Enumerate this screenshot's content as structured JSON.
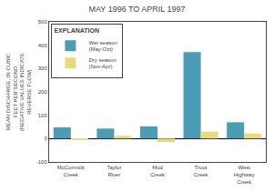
{
  "chart_data": {
    "type": "bar",
    "title": "MAY 1996 TO APRIL 1997",
    "ylabel": "MEAN DISCHARGE, IN CUBIC\nFEET PER SECOND\n(NEGATIVE VALUES INDICATE\nREVERSE FLOW)",
    "categories": [
      "McCormick\nCreek",
      "Taylor\nRiver",
      "Mud\nCreek",
      "Trout\nCreek",
      "West\nHighway\nCreek"
    ],
    "series": [
      {
        "name": "Wet season\n(May-Oct)",
        "color": "#4A9DB5",
        "values": [
          48,
          43,
          52,
          370,
          70
        ]
      },
      {
        "name": "Dry season\n(Nov-Apr)",
        "color": "#E8DC78",
        "values": [
          -3,
          12,
          -15,
          30,
          22
        ]
      }
    ],
    "legend_title": "EXPLANATION",
    "legend": "upper left",
    "ylim": [
      -100,
      500
    ],
    "yticks": [
      -100,
      0,
      100,
      200,
      300,
      400,
      500
    ],
    "grid": false
  }
}
